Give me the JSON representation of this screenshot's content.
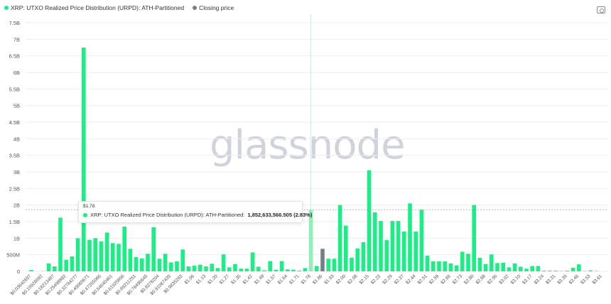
{
  "legend": {
    "series_label": "XRP: UTXO Realized Price Distribution (URPD): ATH-Partitioned",
    "closing_label": "Closing price"
  },
  "watermark": "glassnode",
  "colors": {
    "series": "#1aee84",
    "highlight": "#8ef0b8",
    "closing": "#7a7d85",
    "grid": "#eeeeee"
  },
  "tooltip": {
    "title": "$1.78",
    "label": "XRP: UTXO Realized Price Distribution (URPD): ATH-Partitioned:",
    "value": "1,852,633,566.505 (2.83%)"
  },
  "chart_data": {
    "type": "bar",
    "title": "XRP: UTXO Realized Price Distribution (URPD): ATH-Partitioned",
    "xlabel": "",
    "ylabel": "",
    "ylim": [
      0,
      7.5
    ],
    "y_unit": "billions",
    "y_ticks": [
      "0",
      "500M",
      "1B",
      "1.5B",
      "2B",
      "2.5B",
      "3B",
      "3.5B",
      "4B",
      "4.5B",
      "5B",
      "5.5B",
      "6B",
      "6.5B",
      "7B",
      "7.5B"
    ],
    "x_tick_labels": [
      "$0.03642697",
      "$0.10928092",
      "$0.18213487",
      "$0.25498882",
      "$0.32784277",
      "$0.40069671",
      "$0.47355066",
      "$0.54640461",
      "$0.61925856",
      "$0.69211251",
      "$0.76496645",
      "$0.8378204",
      "$0.91067435",
      "$0.9835283",
      "$1.06",
      "$1.13",
      "$1.20",
      "$1.27",
      "$1.35",
      "$1.42",
      "$1.49",
      "$1.57",
      "$1.64",
      "$1.71",
      "$1.78",
      "$1.86",
      "$1.93",
      "$2.00",
      "$2.08",
      "$2.15",
      "$2.22",
      "$2.29",
      "$2.37",
      "$2.44",
      "$2.51",
      "$2.59",
      "$2.66",
      "$2.73",
      "$2.80",
      "$2.88",
      "$2.95",
      "$3.02",
      "$3.10",
      "$3.17",
      "$3.24",
      "$3.31",
      "$3.39",
      "$3.46",
      "$3.53",
      "$3.61"
    ],
    "values": [
      0.04,
      0,
      0.005,
      0.24,
      0.15,
      1.62,
      0.35,
      0.45,
      1.0,
      6.75,
      0.95,
      1.0,
      0.9,
      1.17,
      0.85,
      0.83,
      1.35,
      0.68,
      0.43,
      0.39,
      0.53,
      1.33,
      0.38,
      0.53,
      0.27,
      0.3,
      0.66,
      0.15,
      0.17,
      0.2,
      0.15,
      0.23,
      0.1,
      0.51,
      0.12,
      0.22,
      0.08,
      0.08,
      0.57,
      0.14,
      0.03,
      0.31,
      0.05,
      0.31,
      0.06,
      0.05,
      0.02,
      0.1,
      1.85,
      0.16,
      0.68,
      0.38,
      0.38,
      2.0,
      1.38,
      0.41,
      0.69,
      0.88,
      3.05,
      1.78,
      1.52,
      0.94,
      1.52,
      1.52,
      1.2,
      2.05,
      1.2,
      1.86,
      0.47,
      0.3,
      0.3,
      0.3,
      0.24,
      0.18,
      0.59,
      0.53,
      2.0,
      0.41,
      0.22,
      0.51,
      0.25,
      0.26,
      0.12,
      0.24,
      0.14,
      0.08,
      0.16,
      0.16,
      0.02,
      0.02,
      0.02,
      0.01,
      0.02,
      0.11,
      0.21,
      0.01,
      0.03,
      0.01,
      0
    ],
    "highlighted_index": 48,
    "closing_price_index": 50,
    "grid": true,
    "legend_position": "top-left"
  }
}
